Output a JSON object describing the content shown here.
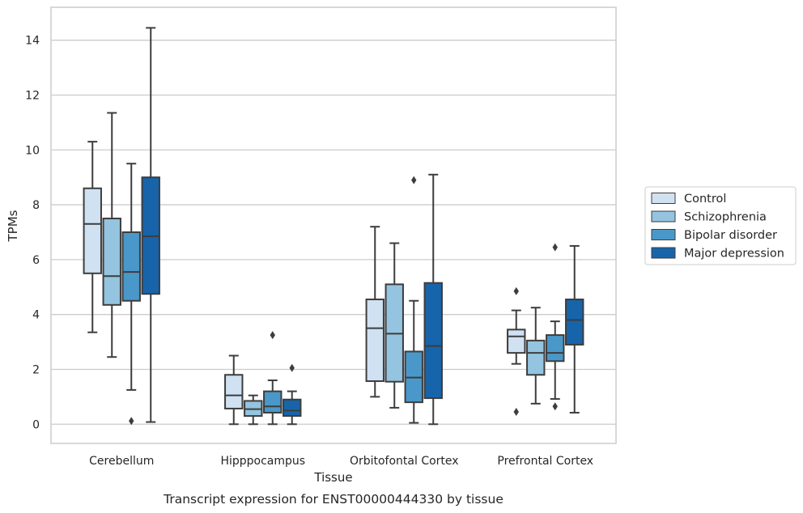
{
  "chart_data": {
    "type": "boxplot",
    "title": "",
    "caption": "Transcript expression for ENST00000444330 by tissue",
    "xlabel": "Tissue",
    "ylabel": "TPMs",
    "ylim": [
      -0.7,
      15.2
    ],
    "yticks": [
      0,
      2,
      4,
      6,
      8,
      10,
      12,
      14
    ],
    "grid": "horizontal",
    "legend_position": "right",
    "categories": [
      "Cerebellum",
      "Hipppocampus",
      "Orbitofontal Cortex",
      "Prefrontal Cortex"
    ],
    "series": [
      {
        "name": "Control",
        "color": "#d0e1f2",
        "boxes": [
          {
            "whisker_low": 3.35,
            "q1": 5.5,
            "median": 7.3,
            "q3": 8.6,
            "whisker_high": 10.3,
            "outliers": []
          },
          {
            "whisker_low": 0.0,
            "q1": 0.57,
            "median": 1.05,
            "q3": 1.8,
            "whisker_high": 2.5,
            "outliers": []
          },
          {
            "whisker_low": 1.0,
            "q1": 1.57,
            "median": 3.5,
            "q3": 4.55,
            "whisker_high": 7.2,
            "outliers": []
          },
          {
            "whisker_low": 2.2,
            "q1": 2.6,
            "median": 3.2,
            "q3": 3.45,
            "whisker_high": 4.15,
            "outliers": [
              4.85,
              0.45
            ]
          }
        ]
      },
      {
        "name": "Schizophrenia",
        "color": "#94c4df",
        "boxes": [
          {
            "whisker_low": 2.45,
            "q1": 4.35,
            "median": 5.4,
            "q3": 7.5,
            "whisker_high": 11.35,
            "outliers": []
          },
          {
            "whisker_low": 0.0,
            "q1": 0.3,
            "median": 0.55,
            "q3": 0.85,
            "whisker_high": 1.05,
            "outliers": []
          },
          {
            "whisker_low": 0.6,
            "q1": 1.55,
            "median": 3.3,
            "q3": 5.1,
            "whisker_high": 6.6,
            "outliers": []
          },
          {
            "whisker_low": 0.75,
            "q1": 1.8,
            "median": 2.6,
            "q3": 3.05,
            "whisker_high": 4.25,
            "outliers": []
          }
        ]
      },
      {
        "name": "Bipolar disorder",
        "color": "#4a98c9",
        "boxes": [
          {
            "whisker_low": 1.25,
            "q1": 4.5,
            "median": 5.55,
            "q3": 7.0,
            "whisker_high": 9.5,
            "outliers": [
              0.12
            ]
          },
          {
            "whisker_low": 0.0,
            "q1": 0.42,
            "median": 0.65,
            "q3": 1.2,
            "whisker_high": 1.6,
            "outliers": [
              3.25
            ]
          },
          {
            "whisker_low": 0.05,
            "q1": 0.8,
            "median": 1.7,
            "q3": 2.65,
            "whisker_high": 4.5,
            "outliers": [
              8.9
            ]
          },
          {
            "whisker_low": 0.92,
            "q1": 2.3,
            "median": 2.6,
            "q3": 3.25,
            "whisker_high": 3.75,
            "outliers": [
              6.45,
              0.65
            ]
          }
        ]
      },
      {
        "name": "Major depression",
        "color": "#1764ab",
        "boxes": [
          {
            "whisker_low": 0.08,
            "q1": 4.75,
            "median": 6.85,
            "q3": 9.0,
            "whisker_high": 14.45,
            "outliers": []
          },
          {
            "whisker_low": 0.0,
            "q1": 0.3,
            "median": 0.5,
            "q3": 0.9,
            "whisker_high": 1.2,
            "outliers": [
              2.05
            ]
          },
          {
            "whisker_low": 0.0,
            "q1": 0.95,
            "median": 2.85,
            "q3": 5.15,
            "whisker_high": 9.1,
            "outliers": []
          },
          {
            "whisker_low": 0.42,
            "q1": 2.9,
            "median": 3.8,
            "q3": 4.55,
            "whisker_high": 6.5,
            "outliers": []
          }
        ]
      }
    ]
  }
}
